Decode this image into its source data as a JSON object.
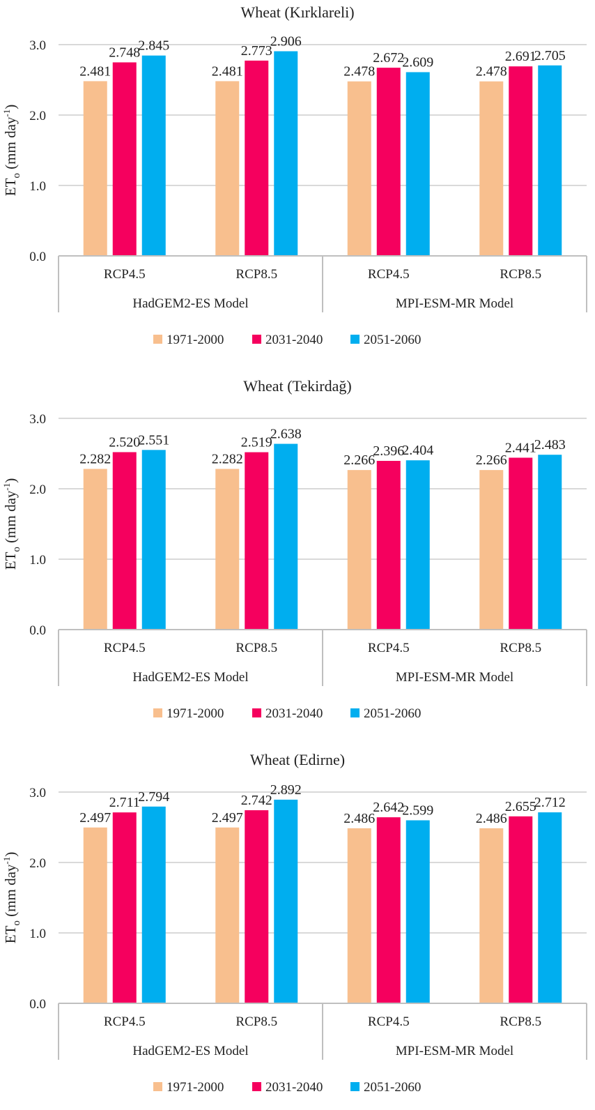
{
  "colors": {
    "s1971": "#F8BF8E",
    "s2031": "#F5005E",
    "s2051": "#00AEEF",
    "grid": "#D9D9D9",
    "axis": "#BFBFBF"
  },
  "chart_data": [
    {
      "type": "bar",
      "title": "Wheat (Kırklareli)",
      "ylabel_main": "ET",
      "ylabel_sub": "o",
      "ylabel_unit": " (mm day",
      "ylabel_sup": "-1",
      "ylabel_close": ")",
      "ylim": [
        0,
        3
      ],
      "yticks": [
        "0.0",
        "1.0",
        "2.0",
        "3.0"
      ],
      "categories": [
        "RCP4.5",
        "RCP8.5",
        "RCP4.5",
        "RCP8.5"
      ],
      "groups": [
        "HadGEM2-ES Model",
        "MPI-ESM-MR Model"
      ],
      "series": [
        {
          "name": "1971-2000",
          "values": [
            2.481,
            2.481,
            2.478,
            2.478
          ],
          "labels": [
            "2.481",
            "2.481",
            "2.478",
            "2.478"
          ]
        },
        {
          "name": "2031-2040",
          "values": [
            2.748,
            2.773,
            2.672,
            2.691
          ],
          "labels": [
            "2.748",
            "2.773",
            "2.672",
            "2.691"
          ]
        },
        {
          "name": "2051-2060",
          "values": [
            2.845,
            2.906,
            2.609,
            2.705
          ],
          "labels": [
            "2.845",
            "2.906",
            "2.609",
            "2.705"
          ]
        }
      ],
      "legend": "bottom"
    },
    {
      "type": "bar",
      "title": "Wheat (Tekirdağ)",
      "ylabel_main": "ET",
      "ylabel_sub": "o",
      "ylabel_unit": " (mm day",
      "ylabel_sup": "-1",
      "ylabel_close": ")",
      "ylim": [
        0,
        3
      ],
      "yticks": [
        "0.0",
        "1.0",
        "2.0",
        "3.0"
      ],
      "categories": [
        "RCP4.5",
        "RCP8.5",
        "RCP4.5",
        "RCP8.5"
      ],
      "groups": [
        "HadGEM2-ES Model",
        "MPI-ESM-MR Model"
      ],
      "series": [
        {
          "name": "1971-2000",
          "values": [
            2.282,
            2.282,
            2.266,
            2.266
          ],
          "labels": [
            "2.282",
            "2.282",
            "2.266",
            "2.266"
          ]
        },
        {
          "name": "2031-2040",
          "values": [
            2.52,
            2.519,
            2.396,
            2.441
          ],
          "labels": [
            "2.520",
            "2.519",
            "2.396",
            "2.441"
          ]
        },
        {
          "name": "2051-2060",
          "values": [
            2.551,
            2.638,
            2.404,
            2.483
          ],
          "labels": [
            "2.551",
            "2.638",
            "2.404",
            "2.483"
          ]
        }
      ],
      "legend": "bottom"
    },
    {
      "type": "bar",
      "title": "Wheat (Edirne)",
      "ylabel_main": "ET",
      "ylabel_sub": "o",
      "ylabel_unit": " (mm day",
      "ylabel_sup": "-1",
      "ylabel_close": ")",
      "ylim": [
        0,
        3
      ],
      "yticks": [
        "0.0",
        "1.0",
        "2.0",
        "3.0"
      ],
      "categories": [
        "RCP4.5",
        "RCP8.5",
        "RCP4.5",
        "RCP8.5"
      ],
      "groups": [
        "HadGEM2-ES Model",
        "MPI-ESM-MR Model"
      ],
      "series": [
        {
          "name": "1971-2000",
          "values": [
            2.497,
            2.497,
            2.486,
            2.486
          ],
          "labels": [
            "2.497",
            "2.497",
            "2.486",
            "2.486"
          ]
        },
        {
          "name": "2031-2040",
          "values": [
            2.711,
            2.742,
            2.642,
            2.655
          ],
          "labels": [
            "2.711",
            "2.742",
            "2.642",
            "2.655"
          ]
        },
        {
          "name": "2051-2060",
          "values": [
            2.794,
            2.892,
            2.599,
            2.712
          ],
          "labels": [
            "2.794",
            "2.892",
            "2.599",
            "2.712"
          ]
        }
      ],
      "legend": "bottom"
    }
  ]
}
